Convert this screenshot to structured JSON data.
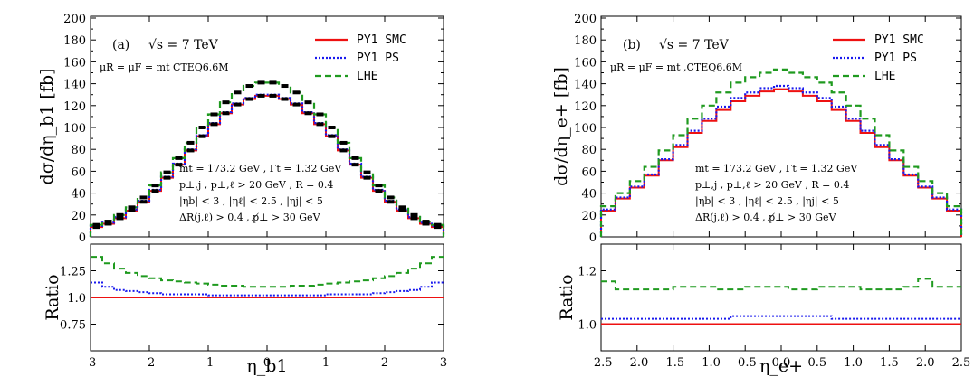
{
  "chart_data": [
    {
      "type": "line",
      "panel_label": "(a)",
      "energy_text": "√s = 7 TeV",
      "scale_text": "μR = μF = mt CTEQ6.6M",
      "xlabel": "η_b1",
      "ylabel": "dσ/dη_b1 [fb]",
      "ratio_label": "Ratio",
      "xlim": [
        -3,
        3
      ],
      "ylim": [
        0,
        200
      ],
      "ratio_ylim": [
        0.5,
        1.5
      ],
      "x_ticks": [
        "-3",
        "-2",
        "-1",
        "0",
        "1",
        "2",
        "3"
      ],
      "y_ticks": [
        "0",
        "20",
        "40",
        "60",
        "80",
        "100",
        "120",
        "140",
        "160",
        "180",
        "200"
      ],
      "ratio_ticks": [
        "0.75",
        "1.0",
        "1.25"
      ],
      "notes": [
        "mt = 173.2 GeV , Γt = 1.32 GeV",
        "p⊥,j , p⊥,ℓ > 20 GeV , R = 0.4",
        "|ηb| < 3 , |ηℓ| < 2.5 , |ηj| < 5",
        "ΔR(j,ℓ) > 0.4 , p̸⊥ > 30 GeV"
      ],
      "bin_edges": [
        -3.0,
        -2.8,
        -2.6,
        -2.4,
        -2.2,
        -2.0,
        -1.8,
        -1.6,
        -1.4,
        -1.2,
        -1.0,
        -0.8,
        -0.6,
        -0.4,
        -0.2,
        0.0,
        0.2,
        0.4,
        0.6,
        0.8,
        1.0,
        1.2,
        1.4,
        1.6,
        1.8,
        2.0,
        2.2,
        2.4,
        2.6,
        2.8,
        3.0
      ],
      "series": [
        {
          "name": "PY1 SMC",
          "color": "#ee1111",
          "dash": "none",
          "values": [
            9,
            12,
            17,
            24,
            32,
            42,
            54,
            66,
            79,
            92,
            103,
            113,
            121,
            126,
            129,
            129,
            126,
            121,
            113,
            103,
            92,
            79,
            66,
            54,
            42,
            32,
            24,
            17,
            12,
            9
          ],
          "ratio": [
            1,
            1,
            1,
            1,
            1,
            1,
            1,
            1,
            1,
            1,
            1,
            1,
            1,
            1,
            1,
            1,
            1,
            1,
            1,
            1,
            1,
            1,
            1,
            1,
            1,
            1,
            1,
            1,
            1,
            1
          ]
        },
        {
          "name": "PY1 PS",
          "color": "#1a1aee",
          "dash": "2,2",
          "values": [
            10,
            13,
            18,
            25,
            33,
            43,
            55,
            67,
            80,
            93,
            104,
            114,
            122,
            127,
            130,
            130,
            127,
            122,
            114,
            104,
            93,
            80,
            67,
            55,
            43,
            33,
            25,
            18,
            13,
            10
          ],
          "ratio": [
            1.14,
            1.1,
            1.07,
            1.06,
            1.05,
            1.04,
            1.03,
            1.03,
            1.03,
            1.03,
            1.02,
            1.02,
            1.02,
            1.02,
            1.02,
            1.02,
            1.02,
            1.02,
            1.02,
            1.02,
            1.03,
            1.03,
            1.03,
            1.03,
            1.04,
            1.05,
            1.06,
            1.07,
            1.1,
            1.14
          ]
        },
        {
          "name": "LHE",
          "color": "#1f9a1f",
          "dash": "7,4",
          "values": [
            11,
            14,
            20,
            27,
            36,
            47,
            59,
            72,
            86,
            100,
            112,
            123,
            132,
            138,
            141,
            141,
            138,
            132,
            123,
            112,
            100,
            86,
            72,
            59,
            47,
            36,
            27,
            20,
            14,
            11
          ],
          "ratio": [
            1.38,
            1.32,
            1.27,
            1.23,
            1.2,
            1.18,
            1.16,
            1.15,
            1.14,
            1.13,
            1.12,
            1.11,
            1.11,
            1.1,
            1.1,
            1.1,
            1.1,
            1.11,
            1.11,
            1.12,
            1.13,
            1.14,
            1.15,
            1.16,
            1.18,
            1.2,
            1.23,
            1.27,
            1.32,
            1.38
          ]
        }
      ],
      "errbar_series": "LHE"
    },
    {
      "type": "line",
      "panel_label": "(b)",
      "energy_text": "√s = 7 TeV",
      "scale_text": "μR = μF = mt ,CTEQ6.6M",
      "xlabel": "η_e+",
      "ylabel": "dσ/dη_e+ [fb]",
      "ratio_label": "Ratio",
      "xlim": [
        -2.5,
        2.5
      ],
      "ylim": [
        0,
        200
      ],
      "ratio_ylim": [
        0.9,
        1.3
      ],
      "x_ticks": [
        "-2.5",
        "-2.0",
        "-1.5",
        "-1.0",
        "-0.5",
        "0.0",
        "0.5",
        "1.0",
        "1.5",
        "2.0",
        "2.5"
      ],
      "y_ticks": [
        "0",
        "20",
        "40",
        "60",
        "80",
        "100",
        "120",
        "140",
        "160",
        "180",
        "200"
      ],
      "ratio_ticks": [
        "1.0",
        "1.2"
      ],
      "notes": [
        "mt = 173.2 GeV , Γt = 1.32 GeV",
        "p⊥,j , p⊥,ℓ > 20 GeV , R = 0.4",
        "|ηb| < 3 , |ηℓ| < 2.5 , |ηj| < 5",
        "ΔR(j,ℓ) > 0.4 , p̸⊥ > 30 GeV"
      ],
      "bin_edges": [
        -2.5,
        -2.3,
        -2.1,
        -1.9,
        -1.7,
        -1.5,
        -1.3,
        -1.1,
        -0.9,
        -0.7,
        -0.5,
        -0.3,
        -0.1,
        0.1,
        0.3,
        0.5,
        0.7,
        0.9,
        1.1,
        1.3,
        1.5,
        1.7,
        1.9,
        2.1,
        2.3,
        2.5
      ],
      "series": [
        {
          "name": "PY1 SMC",
          "color": "#ee1111",
          "dash": "none",
          "values": [
            24,
            35,
            45,
            56,
            70,
            82,
            95,
            106,
            116,
            124,
            129,
            133,
            135,
            133,
            129,
            124,
            116,
            106,
            95,
            82,
            70,
            56,
            45,
            35,
            24
          ],
          "ratio": [
            1,
            1,
            1,
            1,
            1,
            1,
            1,
            1,
            1,
            1,
            1,
            1,
            1,
            1,
            1,
            1,
            1,
            1,
            1,
            1,
            1,
            1,
            1,
            1,
            1
          ]
        },
        {
          "name": "PY1 PS",
          "color": "#1a1aee",
          "dash": "2,2",
          "values": [
            25,
            36,
            46,
            57,
            71,
            84,
            97,
            108,
            119,
            127,
            132,
            136,
            138,
            136,
            132,
            127,
            119,
            108,
            97,
            84,
            71,
            57,
            46,
            36,
            25
          ],
          "ratio": [
            1.02,
            1.02,
            1.02,
            1.02,
            1.02,
            1.02,
            1.02,
            1.02,
            1.02,
            1.03,
            1.03,
            1.03,
            1.03,
            1.03,
            1.03,
            1.03,
            1.02,
            1.02,
            1.02,
            1.02,
            1.02,
            1.02,
            1.02,
            1.02,
            1.02
          ]
        },
        {
          "name": "LHE",
          "color": "#1f9a1f",
          "dash": "7,4",
          "values": [
            28,
            40,
            51,
            64,
            79,
            93,
            108,
            120,
            132,
            141,
            146,
            150,
            153,
            150,
            146,
            141,
            132,
            120,
            108,
            93,
            79,
            64,
            51,
            40,
            28
          ],
          "ratio": [
            1.16,
            1.13,
            1.13,
            1.13,
            1.13,
            1.14,
            1.14,
            1.14,
            1.13,
            1.13,
            1.14,
            1.14,
            1.14,
            1.13,
            1.13,
            1.14,
            1.14,
            1.14,
            1.13,
            1.13,
            1.13,
            1.14,
            1.17,
            1.14,
            1.14
          ]
        }
      ],
      "errbar_series": null
    }
  ]
}
